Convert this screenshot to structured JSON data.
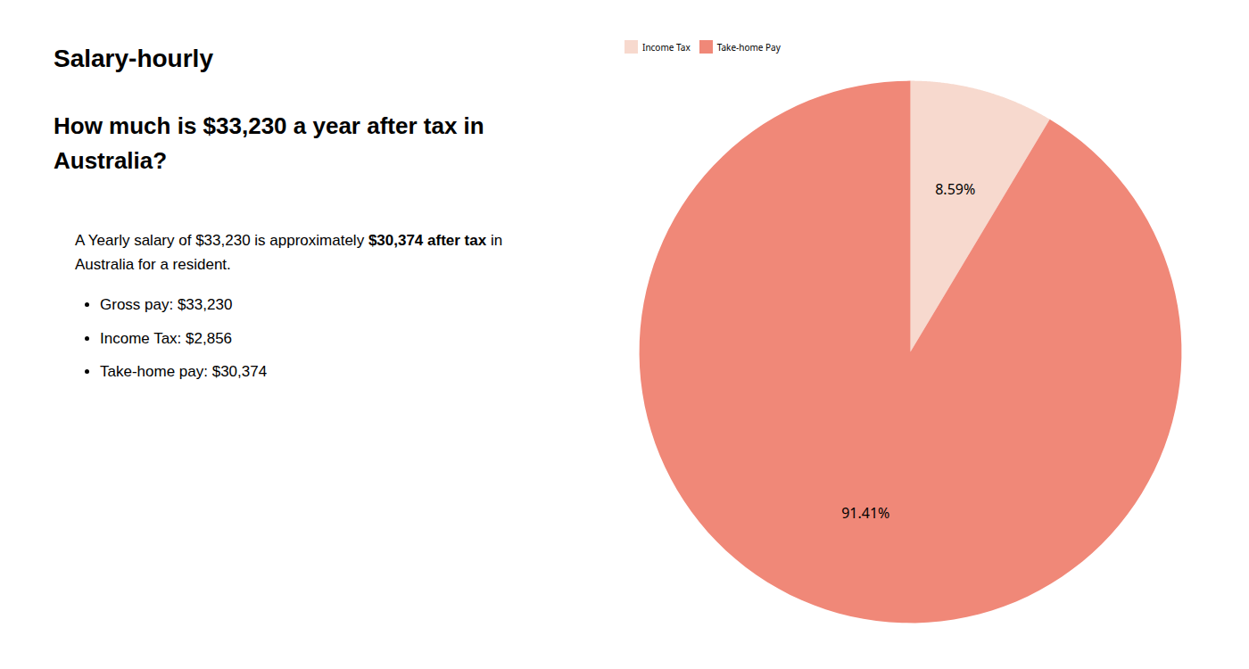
{
  "chart_data": {
    "type": "pie",
    "title": "How much is $33,230 a year after tax in Australia?",
    "annotations": [
      "S",
      "alary-hourly",
      "A Yearly salary of $33,230 is approximately ",
      "$30,374 after tax",
      " in",
      "Australia for a resident.",
      "Gross pay: $33,230",
      "Income Tax: $2,856",
      "Take-home pay: $30,374"
    ],
    "categories": [
      "Income Tax",
      "Take-home Pay"
    ],
    "values": [
      8.59,
      91.41
    ],
    "value_labels": [
      "8.59%",
      "91.41%"
    ],
    "colors": [
      "#f7d9ce",
      "#f08878"
    ],
    "data_labels": true,
    "legend": "top"
  }
}
